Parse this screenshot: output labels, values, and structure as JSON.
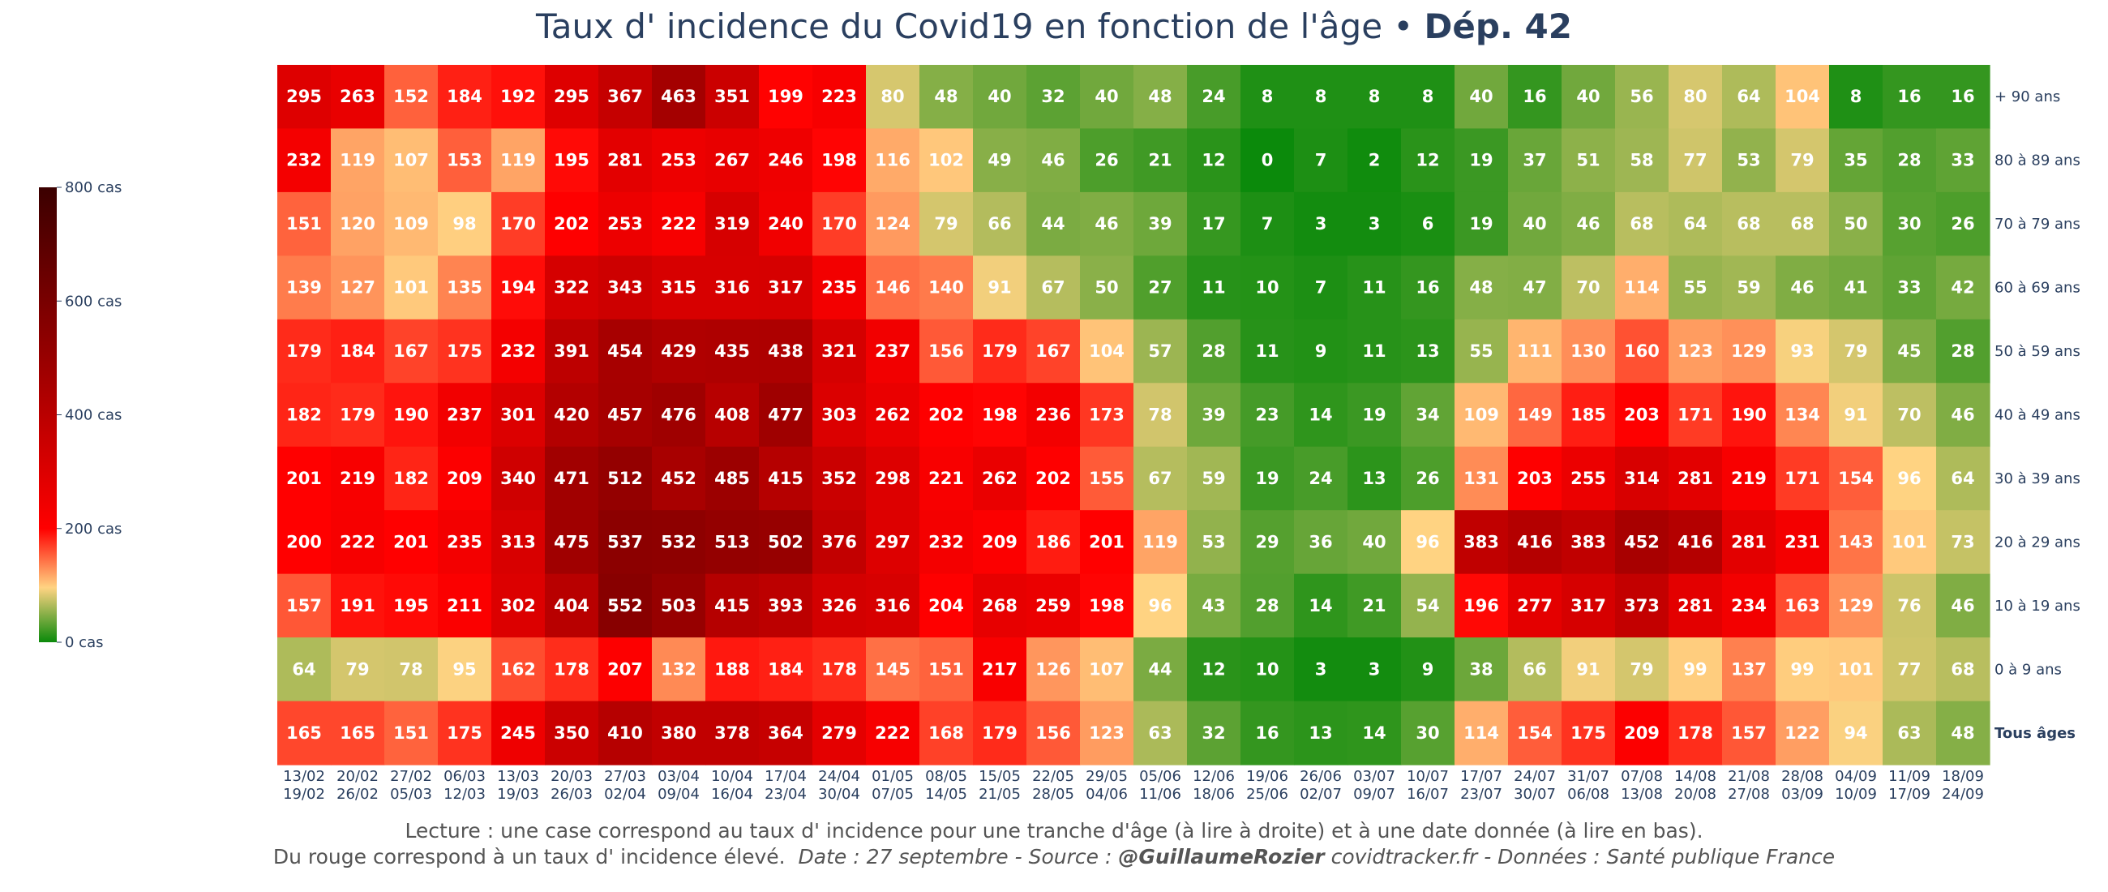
{
  "title": {
    "main": "Taux d' incidence du Covid19 en fonction de l'âge",
    "separator": " • ",
    "dept": "Dép. 42"
  },
  "colorbar": {
    "ticks": [
      0,
      200,
      400,
      600,
      800
    ],
    "tick_labels": [
      "0 cas",
      "200 cas",
      "400 cas",
      "600 cas",
      "800 cas"
    ]
  },
  "colors": {
    "stops": [
      "#0b8a0b",
      "#ffd382",
      "#ff0000",
      "#9e0000",
      "#3b0000"
    ]
  },
  "footer": {
    "line1": "Lecture : une case correspond au taux d' incidence pour une tranche d'âge (à lire à droite) et à une date donnée (à lire en bas).",
    "line2_a": "Du rouge correspond à un taux d' incidence élevé.",
    "line2_b": "Date : 27 septembre - Source :",
    "line2_c": "@GuillaumeRozier",
    "line2_d": "covidtracker.fr - Données : Santé publique France"
  },
  "chart_data": {
    "type": "heatmap",
    "title": "Taux d' incidence du Covid19 en fonction de l'âge • Dép. 42",
    "zlim": [
      0,
      800
    ],
    "x": [
      [
        "13/02",
        "19/02"
      ],
      [
        "20/02",
        "26/02"
      ],
      [
        "27/02",
        "05/03"
      ],
      [
        "06/03",
        "12/03"
      ],
      [
        "13/03",
        "19/03"
      ],
      [
        "20/03",
        "26/03"
      ],
      [
        "27/03",
        "02/04"
      ],
      [
        "03/04",
        "09/04"
      ],
      [
        "10/04",
        "16/04"
      ],
      [
        "17/04",
        "23/04"
      ],
      [
        "24/04",
        "30/04"
      ],
      [
        "01/05",
        "07/05"
      ],
      [
        "08/05",
        "14/05"
      ],
      [
        "15/05",
        "21/05"
      ],
      [
        "22/05",
        "28/05"
      ],
      [
        "29/05",
        "04/06"
      ],
      [
        "05/06",
        "11/06"
      ],
      [
        "12/06",
        "18/06"
      ],
      [
        "19/06",
        "25/06"
      ],
      [
        "26/06",
        "02/07"
      ],
      [
        "03/07",
        "09/07"
      ],
      [
        "10/07",
        "16/07"
      ],
      [
        "17/07",
        "23/07"
      ],
      [
        "24/07",
        "30/07"
      ],
      [
        "31/07",
        "06/08"
      ],
      [
        "07/08",
        "13/08"
      ],
      [
        "14/08",
        "20/08"
      ],
      [
        "21/08",
        "27/08"
      ],
      [
        "28/08",
        "03/09"
      ],
      [
        "04/09",
        "10/09"
      ],
      [
        "11/09",
        "17/09"
      ],
      [
        "18/09",
        "24/09"
      ]
    ],
    "y": [
      "+ 90 ans",
      "80 à 89 ans",
      "70 à 79 ans",
      "60 à 69 ans",
      "50 à 59 ans",
      "40 à 49 ans",
      "30 à 39 ans",
      "20 à 29 ans",
      "10 à 19 ans",
      "0 à 9 ans",
      "Tous âges"
    ],
    "values": [
      [
        295,
        263,
        152,
        184,
        192,
        295,
        367,
        463,
        351,
        199,
        223,
        80,
        48,
        40,
        32,
        40,
        48,
        24,
        8,
        8,
        8,
        8,
        40,
        16,
        40,
        56,
        80,
        64,
        104,
        8,
        16,
        16
      ],
      [
        232,
        119,
        107,
        153,
        119,
        195,
        281,
        253,
        267,
        246,
        198,
        116,
        102,
        49,
        46,
        26,
        21,
        12,
        0,
        7,
        2,
        12,
        19,
        37,
        51,
        58,
        77,
        53,
        79,
        35,
        28,
        33
      ],
      [
        151,
        120,
        109,
        98,
        170,
        202,
        253,
        222,
        319,
        240,
        170,
        124,
        79,
        66,
        44,
        46,
        39,
        17,
        7,
        3,
        3,
        6,
        19,
        40,
        46,
        68,
        64,
        68,
        68,
        50,
        30,
        26
      ],
      [
        139,
        127,
        101,
        135,
        194,
        322,
        343,
        315,
        316,
        317,
        235,
        146,
        140,
        91,
        67,
        50,
        27,
        11,
        10,
        7,
        11,
        16,
        48,
        47,
        70,
        114,
        55,
        59,
        46,
        41,
        33,
        42
      ],
      [
        179,
        184,
        167,
        175,
        232,
        391,
        454,
        429,
        435,
        438,
        321,
        237,
        156,
        179,
        167,
        104,
        57,
        28,
        11,
        9,
        11,
        13,
        55,
        111,
        130,
        160,
        123,
        129,
        93,
        79,
        45,
        28
      ],
      [
        182,
        179,
        190,
        237,
        301,
        420,
        457,
        476,
        408,
        477,
        303,
        262,
        202,
        198,
        236,
        173,
        78,
        39,
        23,
        14,
        19,
        34,
        109,
        149,
        185,
        203,
        171,
        190,
        134,
        91,
        70,
        46
      ],
      [
        201,
        219,
        182,
        209,
        340,
        471,
        512,
        452,
        485,
        415,
        352,
        298,
        221,
        262,
        202,
        155,
        67,
        59,
        19,
        24,
        13,
        26,
        131,
        203,
        255,
        314,
        281,
        219,
        171,
        154,
        96,
        64
      ],
      [
        200,
        222,
        201,
        235,
        313,
        475,
        537,
        532,
        513,
        502,
        376,
        297,
        232,
        209,
        186,
        201,
        119,
        53,
        29,
        36,
        40,
        96,
        383,
        416,
        383,
        452,
        416,
        281,
        231,
        143,
        101,
        73
      ],
      [
        157,
        191,
        195,
        211,
        302,
        404,
        552,
        503,
        415,
        393,
        326,
        316,
        204,
        268,
        259,
        198,
        96,
        43,
        28,
        14,
        21,
        54,
        196,
        277,
        317,
        373,
        281,
        234,
        163,
        129,
        76,
        46
      ],
      [
        64,
        79,
        78,
        95,
        162,
        178,
        207,
        132,
        188,
        184,
        178,
        145,
        151,
        217,
        126,
        107,
        44,
        12,
        10,
        3,
        3,
        9,
        38,
        66,
        91,
        79,
        99,
        137,
        99,
        101,
        77,
        68
      ],
      [
        165,
        165,
        151,
        175,
        245,
        350,
        410,
        380,
        378,
        364,
        279,
        222,
        168,
        179,
        156,
        123,
        63,
        32,
        16,
        13,
        14,
        30,
        114,
        154,
        175,
        209,
        178,
        157,
        122,
        94,
        63,
        48
      ]
    ]
  }
}
